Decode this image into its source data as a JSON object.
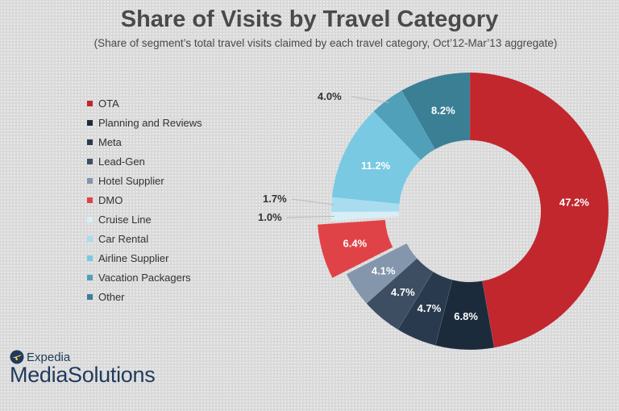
{
  "header": {
    "title": "Share of Visits by Travel Category",
    "subtitle": "(Share of segment’s total travel visits claimed by each travel category, Oct’12-Mar’13 aggregate)"
  },
  "brand": {
    "line1": "Expedia",
    "line2": "MediaSolutions",
    "color": "#1f3a5c"
  },
  "chart_data": {
    "type": "pie",
    "variant": "donut",
    "title": "Share of Visits by Travel Category",
    "subtitle": "(Share of segment’s total travel visits claimed by each travel category, Oct’12-Mar’13 aggregate)",
    "legend_position": "left",
    "slices": [
      {
        "name": "OTA",
        "value": 47.2,
        "label": "47.2%",
        "color": "#c1272d"
      },
      {
        "name": "Planning and Reviews",
        "value": 6.8,
        "label": "6.8%",
        "color": "#1c2b3c"
      },
      {
        "name": "Meta",
        "value": 4.7,
        "label": "4.7%",
        "color": "#2a3a4e"
      },
      {
        "name": "Lead-Gen",
        "value": 4.7,
        "label": "4.7%",
        "color": "#3d4e63"
      },
      {
        "name": "Hotel Supplier",
        "value": 4.1,
        "label": "4.1%",
        "color": "#8496ab"
      },
      {
        "name": "DMO",
        "value": 6.4,
        "label": "6.4%",
        "color": "#e04347",
        "exploded": true
      },
      {
        "name": "Cruise Line",
        "value": 1.0,
        "label": "1.0%",
        "color": "#d7eef7"
      },
      {
        "name": "Car Rental",
        "value": 1.7,
        "label": "1.7%",
        "color": "#a9dcef"
      },
      {
        "name": "Airline Supplier",
        "value": 11.2,
        "label": "11.2%",
        "color": "#79c9e3"
      },
      {
        "name": "Vacation Packagers",
        "value": 4.0,
        "label": "4.0%",
        "color": "#4fa0b8"
      },
      {
        "name": "Other",
        "value": 8.2,
        "label": "8.2%",
        "color": "#3b7f95"
      }
    ]
  }
}
